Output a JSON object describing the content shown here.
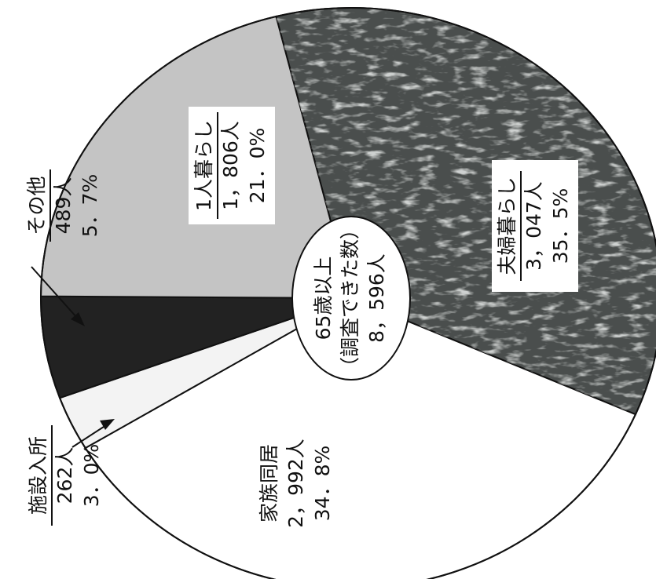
{
  "chart_data": {
    "type": "pie",
    "variant": "donut",
    "title": "",
    "center_label": [
      "65歳以上",
      "（調査できた数）",
      "8，596人"
    ],
    "total": 8596,
    "unit": "人",
    "start": "top",
    "direction": "clockwise",
    "text_orientation": "rotated 90° counter-clockwise (vertical reading bottom-to-top)",
    "slices": [
      {
        "name": "夫婦暮らし",
        "count_label": "3，047人",
        "percent_label": "35．5%",
        "value": 3047,
        "percent": 35.5,
        "color": "#4a4e4d",
        "texture": "mottled"
      },
      {
        "name": "家族同居",
        "count_label": "2，992人",
        "percent_label": "34．8%",
        "value": 2992,
        "percent": 34.8,
        "color": "#ffffff"
      },
      {
        "name": "施設入所",
        "count_label": "262人",
        "percent_label": "3．0%",
        "value": 262,
        "percent": 3.0,
        "color": "#f3f3f3"
      },
      {
        "name": "その他",
        "count_label": "489人",
        "percent_label": "5．7%",
        "value": 489,
        "percent": 5.7,
        "color": "#222222"
      },
      {
        "name": "1人暮らし",
        "count_label": "1，806人",
        "percent_label": "21．0%",
        "value": 1806,
        "percent": 21.0,
        "color": "#c4c4c4"
      }
    ]
  }
}
